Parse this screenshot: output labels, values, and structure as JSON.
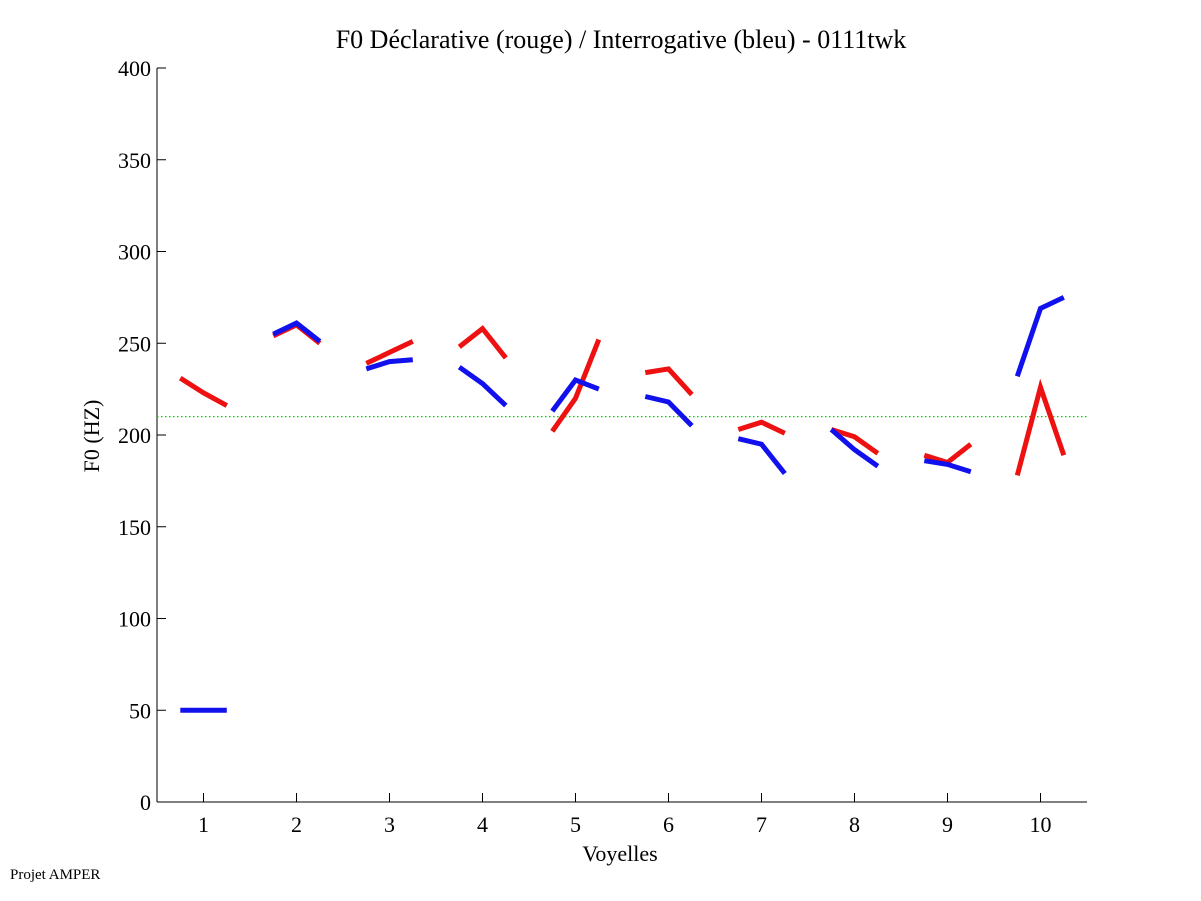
{
  "chart_data": {
    "type": "line",
    "title": "F0 Déclarative (rouge) / Interrogative (bleu) - 0111twk",
    "xlabel": "Voyelles",
    "ylabel": "F0 (HZ)",
    "xlim": [
      0.5,
      10.5
    ],
    "ylim": [
      0,
      400
    ],
    "x_ticks": [
      "1",
      "2",
      "3",
      "4",
      "5",
      "6",
      "7",
      "8",
      "9",
      "10"
    ],
    "y_ticks": [
      "0",
      "50",
      "100",
      "150",
      "200",
      "250",
      "300",
      "350",
      "400"
    ],
    "reference_line": {
      "y": 210,
      "style": "dotted",
      "color": "#00cc00"
    },
    "series": [
      {
        "name": "Déclarative",
        "color": "#ee1111",
        "segments": [
          {
            "vowel": 1,
            "values": [
              231,
              223,
              216
            ]
          },
          {
            "vowel": 2,
            "values": [
              254,
              260,
              250
            ]
          },
          {
            "vowel": 3,
            "values": [
              239,
              245,
              251
            ]
          },
          {
            "vowel": 4,
            "values": [
              248,
              258,
              242
            ]
          },
          {
            "vowel": 5,
            "values": [
              202,
              220,
              252
            ]
          },
          {
            "vowel": 6,
            "values": [
              234,
              236,
              222
            ]
          },
          {
            "vowel": 7,
            "values": [
              203,
              207,
              201
            ]
          },
          {
            "vowel": 8,
            "values": [
              203,
              199,
              190
            ]
          },
          {
            "vowel": 9,
            "values": [
              189,
              185,
              195
            ]
          },
          {
            "vowel": 10,
            "values": [
              178,
              226,
              189
            ]
          }
        ]
      },
      {
        "name": "Interrogative",
        "color": "#1111ee",
        "segments": [
          {
            "vowel": 1,
            "values": [
              50,
              50,
              50
            ]
          },
          {
            "vowel": 2,
            "values": [
              255,
              261,
              251
            ]
          },
          {
            "vowel": 3,
            "values": [
              236,
              240,
              241
            ]
          },
          {
            "vowel": 4,
            "values": [
              237,
              228,
              216
            ]
          },
          {
            "vowel": 5,
            "values": [
              213,
              230,
              225
            ]
          },
          {
            "vowel": 6,
            "values": [
              221,
              218,
              205
            ]
          },
          {
            "vowel": 7,
            "values": [
              198,
              195,
              179
            ]
          },
          {
            "vowel": 8,
            "values": [
              203,
              192,
              183
            ]
          },
          {
            "vowel": 9,
            "values": [
              186,
              184,
              180
            ]
          },
          {
            "vowel": 10,
            "values": [
              232,
              269,
              275
            ]
          }
        ]
      }
    ]
  },
  "footer": {
    "credit": "Projet AMPER"
  }
}
